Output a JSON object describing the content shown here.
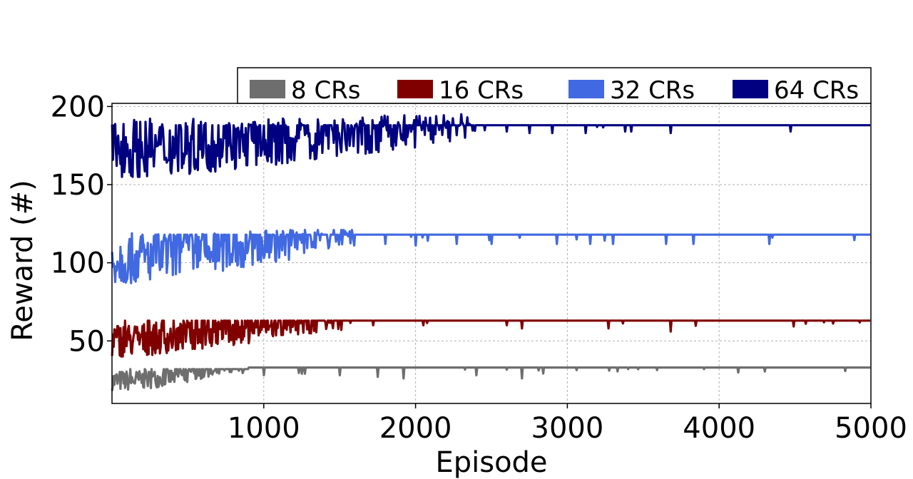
{
  "chart_data": {
    "type": "line",
    "xlabel": "Episode",
    "ylabel": "Reward (#)",
    "xlim": [
      0,
      5000
    ],
    "ylim": [
      10,
      202
    ],
    "xticks": [
      1000,
      2000,
      3000,
      4000,
      5000
    ],
    "xtick_labels": [
      "1000",
      "2000",
      "3000",
      "4000",
      "5000"
    ],
    "yticks": [
      50,
      100,
      150,
      200
    ],
    "ytick_labels": [
      "50",
      "100",
      "150",
      "200"
    ],
    "grid": true,
    "legend_position": "top, above plot",
    "series": [
      {
        "name": "8 CRs",
        "color": "#6e6e6e",
        "converged_value": 33,
        "noisy_until": 900,
        "early_value_range": [
          18,
          32
        ],
        "dips": [
          [
            1000,
            28
          ],
          [
            1250,
            29
          ],
          [
            1500,
            28
          ],
          [
            1750,
            27
          ],
          [
            1920,
            26
          ],
          [
            2400,
            28
          ],
          [
            2700,
            26
          ],
          [
            3400,
            32
          ],
          [
            3900,
            32
          ]
        ]
      },
      {
        "name": "16 CRs",
        "color": "#800000",
        "converged_value": 63,
        "noisy_until": 1500,
        "early_value_range": [
          40,
          63
        ],
        "dips": [
          [
            1510,
            57
          ],
          [
            1720,
            60
          ],
          [
            2050,
            60
          ],
          [
            2600,
            60
          ],
          [
            2700,
            58
          ],
          [
            3270,
            58
          ],
          [
            3680,
            56
          ],
          [
            4570,
            61
          ]
        ]
      },
      {
        "name": "32 CRs",
        "color": "#4169e1",
        "converged_value": 118,
        "noisy_until": 1600,
        "early_value_range": [
          87,
          121
        ],
        "dips": [
          [
            1800,
            112
          ],
          [
            2000,
            111
          ],
          [
            2270,
            112
          ],
          [
            2500,
            112
          ],
          [
            2930,
            112
          ],
          [
            3150,
            112
          ],
          [
            3300,
            112
          ],
          [
            3650,
            112
          ],
          [
            3830,
            112
          ],
          [
            4330,
            112
          ]
        ]
      },
      {
        "name": "64 CRs",
        "color": "#000080",
        "converged_value": 188,
        "noisy_until": 2400,
        "early_value_range": [
          155,
          195
        ],
        "dips": [
          [
            2600,
            184
          ],
          [
            2750,
            183
          ],
          [
            2900,
            183
          ],
          [
            3120,
            183
          ],
          [
            3380,
            184
          ],
          [
            3420,
            184
          ],
          [
            3680,
            183
          ],
          [
            4470,
            184
          ]
        ]
      }
    ]
  }
}
